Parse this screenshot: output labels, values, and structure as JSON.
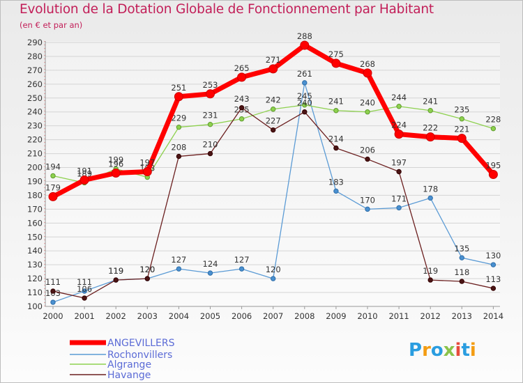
{
  "title": "Evolution de la Dotation Globale de Fonctionnement par Habitant",
  "subtitle": "(en € et par an)",
  "logo": {
    "letters": [
      "P",
      "r",
      "o",
      "x",
      "i",
      "t",
      "i"
    ],
    "colors": [
      "#2a9de0",
      "#f39c12",
      "#2a9de0",
      "#8bc34a",
      "#e74c3c",
      "#2a9de0",
      "#f39c12"
    ]
  },
  "chart_data": {
    "type": "line",
    "x": [
      "2000",
      "2001",
      "2002",
      "2003",
      "2004",
      "2005",
      "2006",
      "2007",
      "2008",
      "2009",
      "2010",
      "2011",
      "2012",
      "2013",
      "2014"
    ],
    "ylim": [
      100,
      290
    ],
    "yticks": [
      100,
      110,
      120,
      130,
      140,
      150,
      160,
      170,
      180,
      190,
      200,
      210,
      220,
      230,
      240,
      250,
      260,
      270,
      280,
      290
    ],
    "grid": true,
    "legend_position": "bottom-left",
    "series": [
      {
        "name": "Rochonvillers",
        "color": "#5b9bd5",
        "values": [
          103,
          111,
          119,
          120,
          127,
          124,
          127,
          120,
          261,
          183,
          170,
          171,
          178,
          135,
          130
        ]
      },
      {
        "name": "Algrange",
        "color": "#8ed14f",
        "values": [
          194,
          189,
          199,
          193,
          229,
          231,
          235,
          242,
          245,
          241,
          240,
          244,
          241,
          235,
          228
        ]
      },
      {
        "name": "Havange",
        "color": "#6b1f1f",
        "values": [
          111,
          106,
          119,
          120,
          208,
          210,
          243,
          227,
          240,
          214,
          206,
          197,
          119,
          118,
          113
        ]
      },
      {
        "name": "ANGEVILLERS",
        "color": "#ff0000",
        "values": [
          179,
          191,
          196,
          197,
          251,
          253,
          265,
          271,
          288,
          275,
          268,
          224,
          222,
          221,
          195
        ]
      }
    ],
    "legend_order": [
      "ANGEVILLERS",
      "Rochonvillers",
      "Algrange",
      "Havange"
    ]
  }
}
